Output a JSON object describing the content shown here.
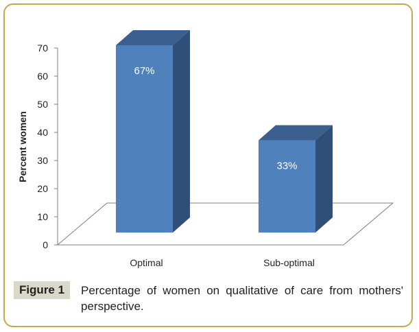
{
  "chart_data": {
    "type": "bar",
    "style": "3d-column",
    "categories": [
      "Optimal",
      "Sub-optimal"
    ],
    "values": [
      67,
      33
    ],
    "data_labels": [
      "67%",
      "33%"
    ],
    "title": "",
    "xlabel": "",
    "ylabel": "Percent women",
    "ylim": [
      0,
      70
    ],
    "yticks": [
      0,
      10,
      20,
      30,
      40,
      50,
      60,
      70
    ],
    "grid": false,
    "legend": "none",
    "colors": {
      "bar_front": "#4f81bd",
      "bar_side": "#2f4f78",
      "bar_top": "#3b5f8e",
      "label": "#ffffff",
      "axis": "#7f7f7f"
    }
  },
  "caption": {
    "label": "Figure 1",
    "text": "Percentage of women on qualitative of care from mothers' perspective."
  },
  "colors": {
    "frame_border": "#c6a74a",
    "label_background": "#dad8c8"
  }
}
